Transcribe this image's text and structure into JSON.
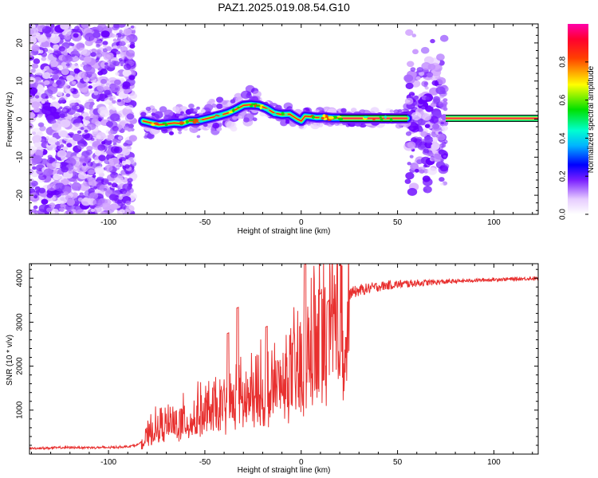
{
  "title": "PAZ1.2025.019.08.54.G10",
  "chart_data": [
    {
      "type": "heatmap",
      "title": "PAZ1.2025.019.08.54.G10",
      "xlabel": "Height of straight line (km)",
      "ylabel": "Frequency (Hz)",
      "xlim": [
        -141,
        123
      ],
      "ylim": [
        -25,
        25
      ],
      "xticks": [
        -100,
        -50,
        0,
        50,
        100
      ],
      "yticks": [
        -20,
        -10,
        0,
        10,
        20
      ],
      "grid": false,
      "colorbar": {
        "label": "Normalized spectral amplitude",
        "ticks": [
          "0.0",
          "0.2",
          "0.4",
          "0.6",
          "0.8"
        ],
        "range": [
          0,
          1
        ],
        "colormap": "rainbow (white-violet-blue-cyan-green-yellow-red-magenta)"
      },
      "ridge": {
        "x": [
          -82,
          -78,
          -74,
          -70,
          -66,
          -62,
          -58,
          -54,
          -50,
          -46,
          -42,
          -38,
          -34,
          -30,
          -26,
          -22,
          -18,
          -14,
          -10,
          -6,
          -2,
          0,
          2,
          4,
          8,
          12,
          16,
          20,
          25,
          30,
          40,
          50,
          55
        ],
        "frequency": [
          -0.5,
          -1.0,
          -1.5,
          -1.3,
          -1.0,
          -1.2,
          -0.5,
          -0.5,
          0.0,
          0.5,
          1.0,
          1.6,
          2.5,
          3.6,
          3.8,
          3.6,
          2.8,
          1.6,
          1.2,
          1.3,
          0.0,
          -0.5,
          0.8,
          0.7,
          0.4,
          0.5,
          0.3,
          0.3,
          0.2,
          0.2,
          0.2,
          0.2,
          0.2
        ]
      },
      "noise_regions": [
        {
          "x": [
            -141,
            -87
          ],
          "frequency": [
            -25,
            25
          ],
          "note_level": "low"
        },
        {
          "x": [
            55,
            75
          ],
          "frequency": [
            -25,
            25
          ],
          "note_level": "mid"
        }
      ],
      "stable_line": {
        "x": [
          20,
          123
        ],
        "frequency": 0.2
      }
    },
    {
      "type": "line",
      "xlabel": "Height of straight line (km)",
      "ylabel": "SNR (10 * v/v)",
      "xlim": [
        -141,
        123
      ],
      "ylim": [
        0,
        4330
      ],
      "xticks": [
        -100,
        -50,
        0,
        50,
        100
      ],
      "yticks": [
        1000,
        2000,
        3000,
        4000
      ],
      "grid": false,
      "line_color": "#e8302f",
      "series": [
        {
          "x": [
            -141,
            -120,
            -100,
            -90,
            -85,
            -82,
            -80,
            -78,
            -76,
            -74,
            -72,
            -70,
            -68,
            -65,
            -62,
            -60,
            -58,
            -55,
            -52,
            -50,
            -48,
            -45,
            -42,
            -40,
            -38,
            -35,
            -33,
            -30,
            -28,
            -25,
            -22,
            -20,
            -18,
            -15,
            -12,
            -10,
            -8,
            -5,
            -3,
            -1,
            0,
            1,
            2,
            3,
            4,
            6,
            8,
            10,
            12,
            15,
            18,
            20,
            25,
            30,
            35,
            40,
            45,
            50,
            60,
            70,
            80,
            90,
            100,
            110,
            123
          ],
          "values": [
            130,
            150,
            150,
            170,
            210,
            300,
            450,
            580,
            650,
            700,
            740,
            750,
            770,
            820,
            850,
            890,
            920,
            1000,
            1050,
            1100,
            1120,
            1150,
            1180,
            1250,
            1300,
            1350,
            1400,
            1450,
            1500,
            1560,
            1600,
            1650,
            1700,
            1750,
            1800,
            1850,
            1950,
            2050,
            2150,
            2250,
            2350,
            2450,
            2550,
            2650,
            2750,
            2850,
            2950,
            3050,
            3150,
            3300,
            3450,
            3550,
            3650,
            3720,
            3770,
            3810,
            3840,
            3860,
            3890,
            3910,
            3930,
            3950,
            3970,
            3980,
            4000
          ]
        }
      ],
      "spikes": [
        {
          "x": -33,
          "value": 3330
        },
        {
          "x": -38,
          "value": 2750
        },
        {
          "x": -18,
          "value": 2900
        },
        {
          "x": 2,
          "value": 4330
        },
        {
          "x": 10,
          "value": 3650
        },
        {
          "x": 14,
          "value": 3480
        }
      ]
    }
  ]
}
